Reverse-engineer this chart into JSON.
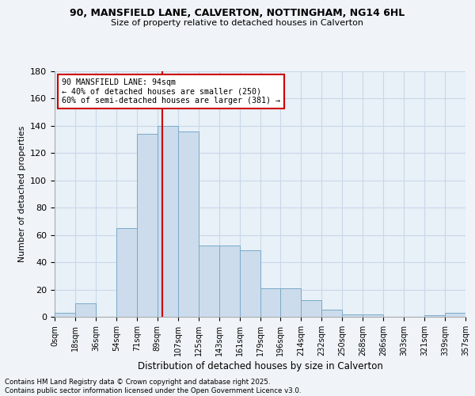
{
  "title1": "90, MANSFIELD LANE, CALVERTON, NOTTINGHAM, NG14 6HL",
  "title2": "Size of property relative to detached houses in Calverton",
  "xlabel": "Distribution of detached houses by size in Calverton",
  "ylabel": "Number of detached properties",
  "bin_starts": [
    0,
    18,
    36,
    54,
    72,
    90,
    108,
    126,
    144,
    162,
    180,
    198,
    216,
    234,
    252,
    270,
    288,
    306,
    324,
    342
  ],
  "bin_labels": [
    "0sqm",
    "18sqm",
    "36sqm",
    "54sqm",
    "71sqm",
    "89sqm",
    "107sqm",
    "125sqm",
    "143sqm",
    "161sqm",
    "179sqm",
    "196sqm",
    "214sqm",
    "232sqm",
    "250sqm",
    "268sqm",
    "286sqm",
    "303sqm",
    "321sqm",
    "339sqm",
    "357sqm"
  ],
  "values": [
    3,
    10,
    0,
    65,
    134,
    140,
    136,
    52,
    52,
    49,
    21,
    21,
    12,
    5,
    2,
    2,
    0,
    0,
    1,
    3
  ],
  "bar_color": "#ccdcec",
  "bar_edge_color": "#7aaac8",
  "vline_color": "#cc0000",
  "vline_x": 94,
  "annotation_box_text": "90 MANSFIELD LANE: 94sqm\n← 40% of detached houses are smaller (250)\n60% of semi-detached houses are larger (381) →",
  "annotation_box_color": "#ffffff",
  "annotation_box_edge_color": "#cc0000",
  "ylim": [
    0,
    180
  ],
  "yticks": [
    0,
    20,
    40,
    60,
    80,
    100,
    120,
    140,
    160,
    180
  ],
  "footer_text": "Contains HM Land Registry data © Crown copyright and database right 2025.\nContains public sector information licensed under the Open Government Licence v3.0.",
  "background_color": "#f0f4f8",
  "plot_bg_color": "#e8f0f8",
  "grid_color": "#c8d8e8"
}
